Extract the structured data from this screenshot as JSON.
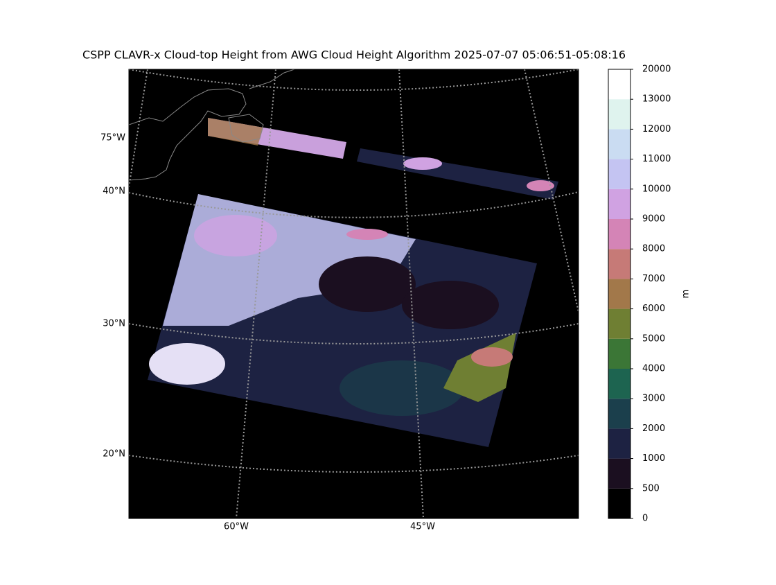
{
  "title": "CSPP CLAVR-x Cloud-top Height from AWG Cloud Height Algorithm 2025-07-07 05:06:51-05:08:16",
  "map": {
    "labels": [
      "75°W",
      "40°N",
      "30°N",
      "20°N",
      "60°W",
      "45°W"
    ]
  },
  "colorbar": {
    "label": "m",
    "ticks": [
      0,
      500,
      1000,
      2000,
      3000,
      4000,
      5000,
      6000,
      7000,
      8000,
      9000,
      10000,
      11000,
      12000,
      13000,
      20000
    ],
    "colors": [
      "#000000",
      "#1b0f20",
      "#1d2242",
      "#1b3f4c",
      "#1d6450",
      "#3b7636",
      "#6f7f33",
      "#a2784a",
      "#c67a77",
      "#d484b6",
      "#d0a2e2",
      "#c4c4f2",
      "#cadcf2",
      "#dff3ee",
      "#ffffff"
    ]
  }
}
